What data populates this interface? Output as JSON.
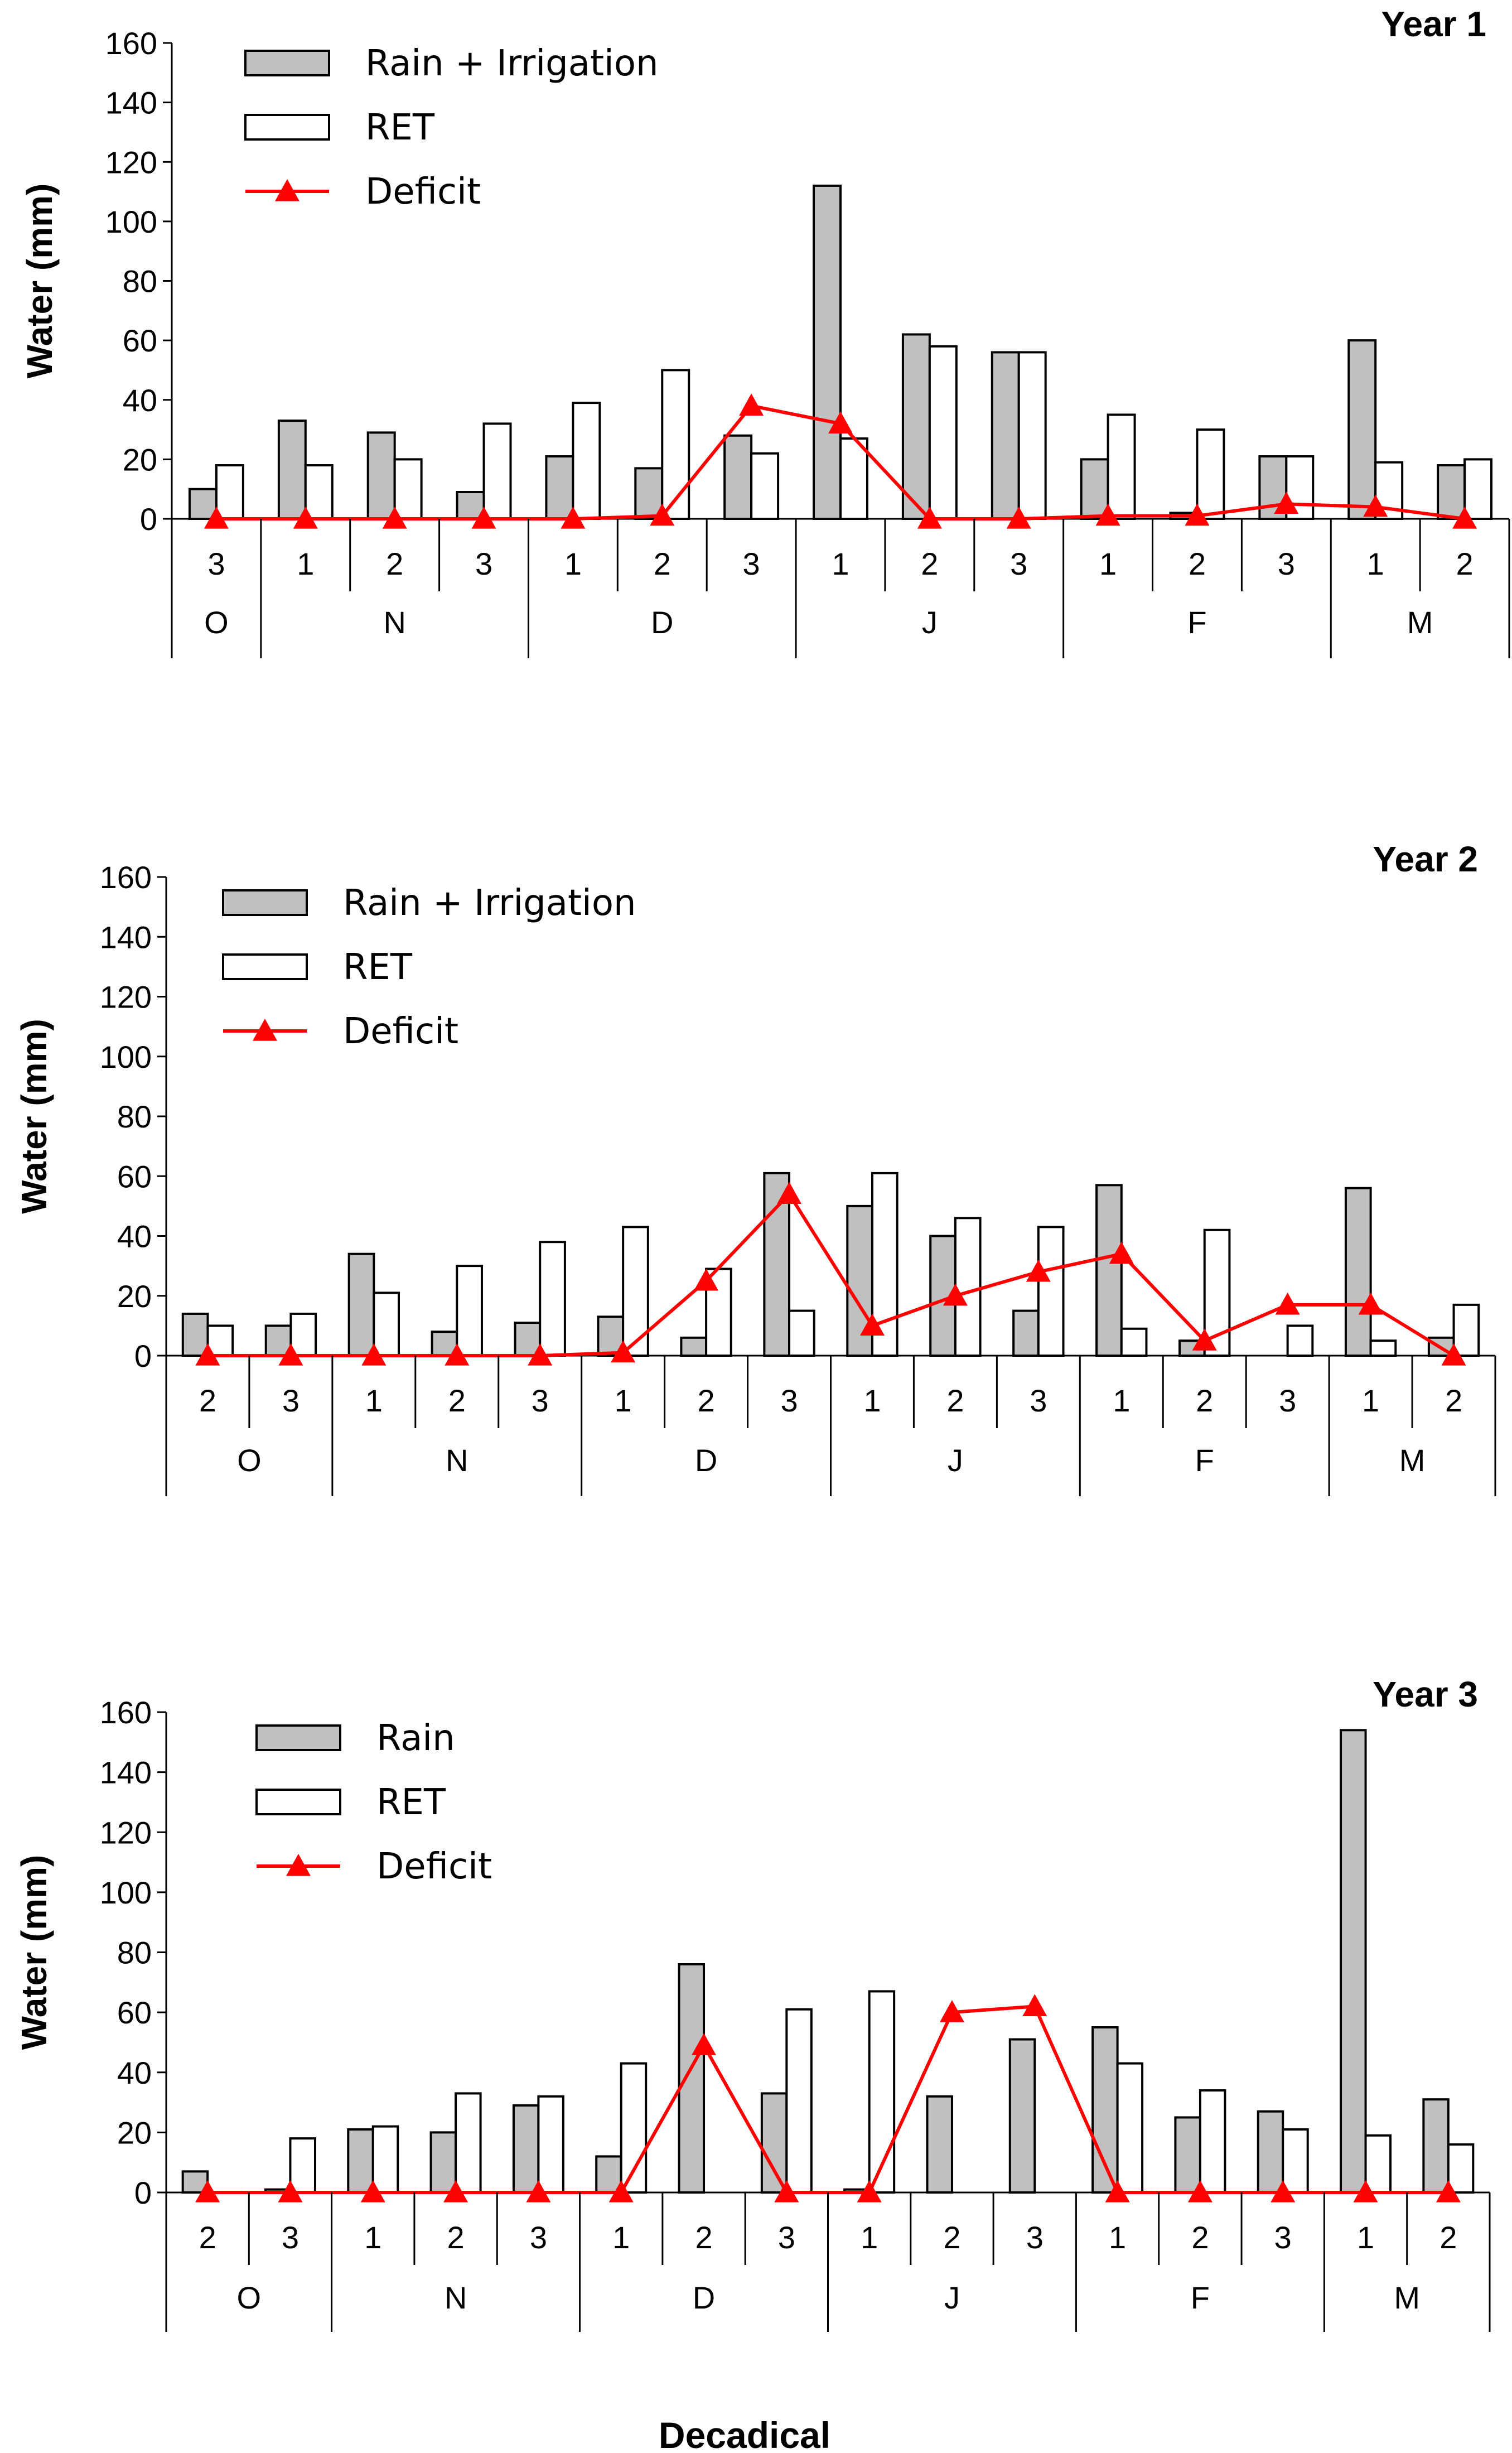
{
  "figure": {
    "xlabel": "Decadical"
  },
  "colors": {
    "rain_fill": "#c0c0c0",
    "ret_fill": "#ffffff",
    "bar_stroke": "#000000",
    "deficit": "#ff0000"
  },
  "chart_data": [
    {
      "type": "bar",
      "title": "Year 1",
      "ylabel": "Water (mm)",
      "ylim": [
        0,
        160
      ],
      "yticks": [
        0,
        20,
        40,
        60,
        80,
        100,
        120,
        140,
        160
      ],
      "decades": [
        "3",
        "1",
        "2",
        "3",
        "1",
        "2",
        "3",
        "1",
        "2",
        "3",
        "1",
        "2",
        "3",
        "1",
        "2"
      ],
      "months": [
        {
          "label": "O",
          "count": 1
        },
        {
          "label": "N",
          "count": 3
        },
        {
          "label": "D",
          "count": 3
        },
        {
          "label": "J",
          "count": 3
        },
        {
          "label": "F",
          "count": 3
        },
        {
          "label": "M",
          "count": 2
        }
      ],
      "series": [
        {
          "name": "Rain + Irrigation",
          "kind": "bar",
          "values": [
            10,
            33,
            29,
            9,
            21,
            17,
            28,
            112,
            62,
            56,
            20,
            2,
            21,
            60,
            18
          ]
        },
        {
          "name": "RET",
          "kind": "bar",
          "values": [
            18,
            18,
            20,
            32,
            39,
            50,
            22,
            27,
            58,
            56,
            35,
            30,
            21,
            19,
            20
          ]
        },
        {
          "name": "Deficit",
          "kind": "line",
          "values": [
            0,
            0,
            0,
            0,
            0,
            1,
            38,
            32,
            0,
            0,
            1,
            1,
            5,
            4,
            0
          ]
        }
      ]
    },
    {
      "type": "bar",
      "title": "Year 2",
      "ylabel": "Water (mm)",
      "ylim": [
        0,
        160
      ],
      "yticks": [
        0,
        20,
        40,
        60,
        80,
        100,
        120,
        140,
        160
      ],
      "decades": [
        "2",
        "3",
        "1",
        "2",
        "3",
        "1",
        "2",
        "3",
        "1",
        "2",
        "3",
        "1",
        "2",
        "3",
        "1",
        "2"
      ],
      "months": [
        {
          "label": "O",
          "count": 2
        },
        {
          "label": "N",
          "count": 3
        },
        {
          "label": "D",
          "count": 3
        },
        {
          "label": "J",
          "count": 3
        },
        {
          "label": "F",
          "count": 3
        },
        {
          "label": "M",
          "count": 2
        }
      ],
      "series": [
        {
          "name": "Rain + Irrigation",
          "kind": "bar",
          "values": [
            14,
            10,
            34,
            8,
            11,
            13,
            6,
            61,
            50,
            40,
            15,
            57,
            5,
            0,
            56,
            6
          ]
        },
        {
          "name": "RET",
          "kind": "bar",
          "values": [
            10,
            14,
            21,
            30,
            38,
            43,
            29,
            15,
            61,
            46,
            43,
            9,
            42,
            10,
            5,
            17
          ]
        },
        {
          "name": "Deficit",
          "kind": "line",
          "values": [
            0,
            0,
            0,
            0,
            0,
            1,
            25,
            54,
            10,
            20,
            28,
            34,
            5,
            17,
            17,
            0
          ]
        }
      ]
    },
    {
      "type": "bar",
      "title": "Year 3",
      "ylabel": "Water (mm)",
      "ylim": [
        0,
        160
      ],
      "yticks": [
        0,
        20,
        40,
        60,
        80,
        100,
        120,
        140,
        160
      ],
      "decades": [
        "2",
        "3",
        "1",
        "2",
        "3",
        "1",
        "2",
        "3",
        "1",
        "2",
        "3",
        "1",
        "2",
        "3",
        "1",
        "2"
      ],
      "months": [
        {
          "label": "O",
          "count": 2
        },
        {
          "label": "N",
          "count": 3
        },
        {
          "label": "D",
          "count": 3
        },
        {
          "label": "J",
          "count": 3
        },
        {
          "label": "F",
          "count": 3
        },
        {
          "label": "M",
          "count": 2
        }
      ],
      "series": [
        {
          "name": "Rain",
          "kind": "bar",
          "values": [
            7,
            1,
            21,
            20,
            29,
            12,
            76,
            33,
            1,
            32,
            51,
            55,
            25,
            27,
            154,
            31
          ]
        },
        {
          "name": "RET",
          "kind": "bar",
          "values": [
            0,
            18,
            22,
            33,
            32,
            43,
            0,
            61,
            67,
            0,
            0,
            43,
            34,
            21,
            19,
            16
          ]
        },
        {
          "name": "Deficit",
          "kind": "line",
          "values": [
            0,
            0,
            0,
            0,
            0,
            0,
            49,
            0,
            0,
            60,
            62,
            0,
            0,
            0,
            0,
            0
          ]
        }
      ]
    }
  ]
}
